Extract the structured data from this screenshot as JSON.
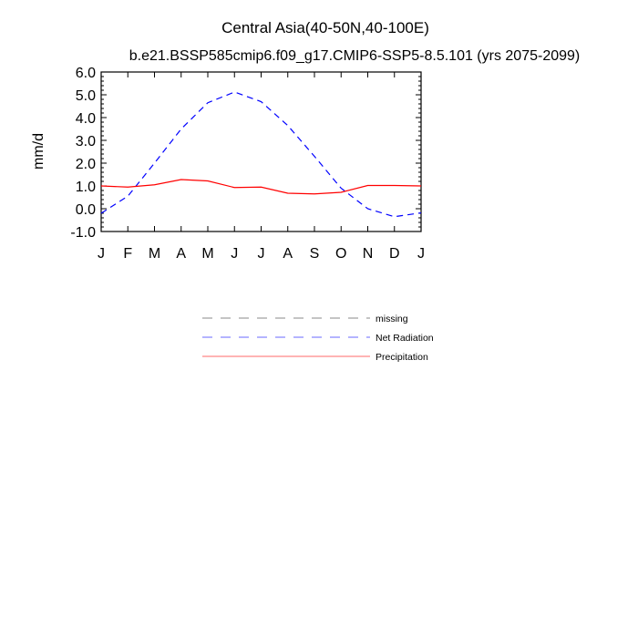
{
  "chart_data": {
    "type": "line",
    "title": "Central Asia(40-50N,40-100E)",
    "subtitle": "b.e21.BSSP585cmip6.f09_g17.CMIP6-SSP5-8.5.101 (yrs 2075-2099)",
    "xlabel": "",
    "ylabel": "mm/d",
    "categories": [
      "J",
      "F",
      "M",
      "A",
      "M",
      "J",
      "J",
      "A",
      "S",
      "O",
      "N",
      "D",
      "J"
    ],
    "ylim": [
      -1.0,
      6.0
    ],
    "yticks": [
      -1.0,
      0.0,
      1.0,
      2.0,
      3.0,
      4.0,
      5.0,
      6.0
    ],
    "ytick_labels": [
      "-1.0",
      "0.0",
      "1.0",
      "2.0",
      "3.0",
      "4.0",
      "5.0",
      "6.0"
    ],
    "grid": false,
    "legend_position": "below",
    "series": [
      {
        "name": "Net Radiation",
        "color": "#0000ff",
        "style": "dashed",
        "values": [
          -0.2,
          0.55,
          2.0,
          3.5,
          4.65,
          5.12,
          4.7,
          3.65,
          2.3,
          0.9,
          0.0,
          -0.35,
          -0.18
        ]
      },
      {
        "name": "Precipitation",
        "color": "#ff0000",
        "style": "solid",
        "values": [
          1.0,
          0.95,
          1.05,
          1.28,
          1.22,
          0.93,
          0.95,
          0.68,
          0.65,
          0.72,
          1.02,
          1.02,
          1.0
        ]
      }
    ],
    "legend": [
      {
        "label": "missing",
        "color": "#888888",
        "style": "dashed"
      },
      {
        "label": "Net Radiation",
        "color": "#6a6aff",
        "style": "dashed"
      },
      {
        "label": "Precipitation",
        "color": "#ff6a6a",
        "style": "solid"
      }
    ]
  }
}
